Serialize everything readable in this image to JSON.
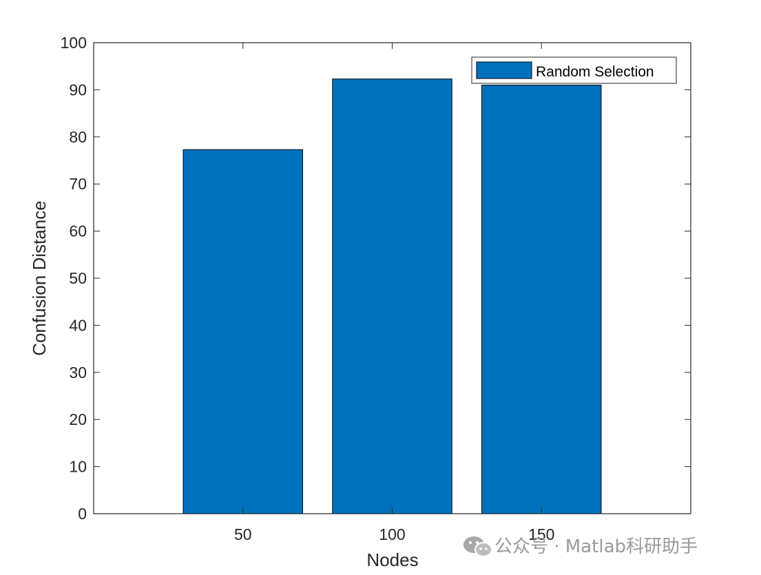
{
  "chart_data": {
    "type": "bar",
    "categories": [
      "50",
      "100",
      "150"
    ],
    "series": [
      {
        "name": "Random Selection",
        "values": [
          77.3,
          92.3,
          91.0
        ]
      }
    ],
    "xlabel": "Nodes",
    "ylabel": "Confusion Distance",
    "ylim": [
      0,
      100
    ],
    "yticks": [
      "0",
      "10",
      "20",
      "30",
      "40",
      "50",
      "60",
      "70",
      "80",
      "90",
      "100"
    ],
    "grid": false,
    "legend_position": "top-right",
    "bar_color": "#0072BD"
  },
  "watermark": {
    "text": "公众号 · Matlab科研助手",
    "icon": "wechat-icon"
  }
}
